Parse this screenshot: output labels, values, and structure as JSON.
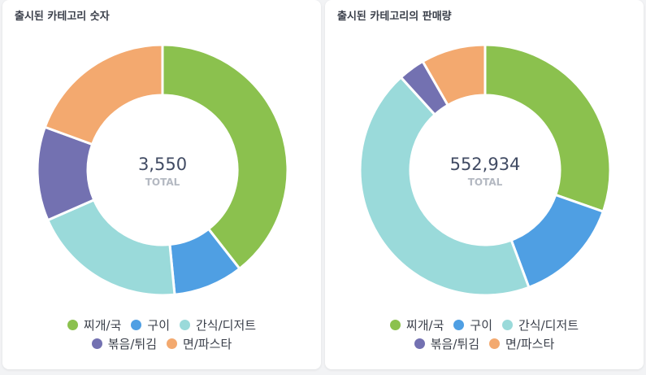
{
  "charts": [
    {
      "title": "출시된 카테고리 숫자",
      "total_value": "3,550",
      "total_label": "TOTAL"
    },
    {
      "title": "출시된 카테고리의 판매량",
      "total_value": "552,934",
      "total_label": "TOTAL"
    }
  ],
  "legend": [
    {
      "label": "찌개/국",
      "color": "#8bc14e"
    },
    {
      "label": "구이",
      "color": "#4f9fe3"
    },
    {
      "label": "간식/디저트",
      "color": "#9adada"
    },
    {
      "label": "볶음/튀김",
      "color": "#7371b1"
    },
    {
      "label": "면/파스타",
      "color": "#f3a96f"
    }
  ],
  "chart_data": [
    {
      "type": "pie",
      "title": "출시된 카테고리 숫자",
      "categories": [
        "찌개/국",
        "구이",
        "간식/디저트",
        "볶음/튀김",
        "면/파스타"
      ],
      "values": [
        1400,
        320,
        710,
        430,
        690
      ],
      "colors": [
        "#8bc14e",
        "#4f9fe3",
        "#9adada",
        "#7371b1",
        "#f3a96f"
      ],
      "donut": true,
      "legend": "bottom"
    },
    {
      "type": "pie",
      "title": "출시된 카테고리의 판매량",
      "categories": [
        "찌개/국",
        "구이",
        "간식/디저트",
        "볶음/튀김",
        "면/파스타"
      ],
      "values": [
        168000,
        77000,
        243000,
        19000,
        45934
      ],
      "colors": [
        "#8bc14e",
        "#4f9fe3",
        "#9adada",
        "#7371b1",
        "#f3a96f"
      ],
      "donut": true,
      "legend": "bottom"
    }
  ]
}
